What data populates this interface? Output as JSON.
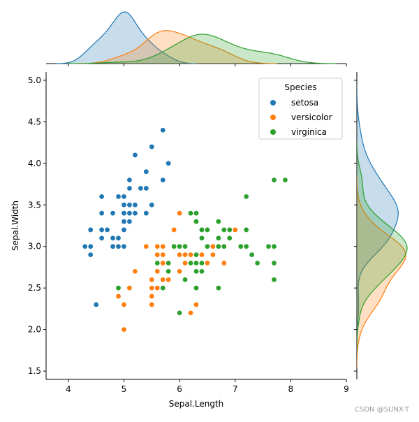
{
  "chart_data": {
    "type": "scatter",
    "xlabel": "Sepal.Length",
    "ylabel": "Sepal.Width",
    "xlim": [
      3.6,
      9.0
    ],
    "ylim": [
      1.4,
      5.1
    ],
    "xticks": [
      4,
      5,
      6,
      7,
      8,
      9
    ],
    "yticks": [
      1.5,
      2.0,
      2.5,
      3.0,
      3.5,
      4.0,
      4.5,
      5.0
    ],
    "legend": {
      "title": "Species",
      "location": "top-right"
    },
    "marginals": {
      "top": "kde of Sepal.Length by Species",
      "right": "kde of Sepal.Width by Species"
    },
    "series": [
      {
        "name": "setosa",
        "color": "#1f77b4",
        "points": [
          [
            5.1,
            3.5
          ],
          [
            4.9,
            3.0
          ],
          [
            4.7,
            3.2
          ],
          [
            4.6,
            3.1
          ],
          [
            5.0,
            3.6
          ],
          [
            5.4,
            3.9
          ],
          [
            4.6,
            3.4
          ],
          [
            5.0,
            3.4
          ],
          [
            4.4,
            2.9
          ],
          [
            4.9,
            3.1
          ],
          [
            5.4,
            3.7
          ],
          [
            4.8,
            3.4
          ],
          [
            4.8,
            3.0
          ],
          [
            4.3,
            3.0
          ],
          [
            5.8,
            4.0
          ],
          [
            5.7,
            4.4
          ],
          [
            5.4,
            3.9
          ],
          [
            5.1,
            3.5
          ],
          [
            5.7,
            3.8
          ],
          [
            5.1,
            3.8
          ],
          [
            5.4,
            3.4
          ],
          [
            5.1,
            3.7
          ],
          [
            4.6,
            3.6
          ],
          [
            5.1,
            3.3
          ],
          [
            4.8,
            3.4
          ],
          [
            5.0,
            3.0
          ],
          [
            5.0,
            3.4
          ],
          [
            5.2,
            3.5
          ],
          [
            5.2,
            3.4
          ],
          [
            4.7,
            3.2
          ],
          [
            4.8,
            3.1
          ],
          [
            5.4,
            3.4
          ],
          [
            5.2,
            4.1
          ],
          [
            5.5,
            4.2
          ],
          [
            4.9,
            3.1
          ],
          [
            5.0,
            3.2
          ],
          [
            5.5,
            3.5
          ],
          [
            4.9,
            3.6
          ],
          [
            4.4,
            3.0
          ],
          [
            5.1,
            3.4
          ],
          [
            5.0,
            3.5
          ],
          [
            4.5,
            2.3
          ],
          [
            4.4,
            3.2
          ],
          [
            5.0,
            3.5
          ],
          [
            5.1,
            3.8
          ],
          [
            4.8,
            3.0
          ],
          [
            5.1,
            3.8
          ],
          [
            4.6,
            3.2
          ],
          [
            5.3,
            3.7
          ],
          [
            5.0,
            3.3
          ]
        ]
      },
      {
        "name": "versicolor",
        "color": "#ff7f0e",
        "points": [
          [
            7.0,
            3.2
          ],
          [
            6.4,
            3.2
          ],
          [
            6.9,
            3.1
          ],
          [
            5.5,
            2.3
          ],
          [
            6.5,
            2.8
          ],
          [
            5.7,
            2.8
          ],
          [
            6.3,
            3.3
          ],
          [
            4.9,
            2.4
          ],
          [
            6.6,
            2.9
          ],
          [
            5.2,
            2.7
          ],
          [
            5.0,
            2.0
          ],
          [
            5.9,
            3.0
          ],
          [
            6.0,
            2.2
          ],
          [
            6.1,
            2.9
          ],
          [
            5.6,
            2.9
          ],
          [
            6.7,
            3.1
          ],
          [
            5.6,
            3.0
          ],
          [
            5.8,
            2.7
          ],
          [
            6.2,
            2.2
          ],
          [
            5.6,
            2.5
          ],
          [
            5.9,
            3.2
          ],
          [
            6.1,
            2.8
          ],
          [
            6.3,
            2.5
          ],
          [
            6.1,
            2.8
          ],
          [
            6.4,
            2.9
          ],
          [
            6.6,
            3.0
          ],
          [
            6.8,
            2.8
          ],
          [
            6.7,
            3.0
          ],
          [
            6.0,
            2.9
          ],
          [
            5.7,
            2.6
          ],
          [
            5.5,
            2.4
          ],
          [
            5.5,
            2.4
          ],
          [
            5.8,
            2.7
          ],
          [
            6.0,
            2.7
          ],
          [
            5.4,
            3.0
          ],
          [
            6.0,
            3.4
          ],
          [
            6.7,
            3.1
          ],
          [
            6.3,
            2.3
          ],
          [
            5.6,
            3.0
          ],
          [
            5.5,
            2.5
          ],
          [
            5.5,
            2.6
          ],
          [
            6.1,
            3.0
          ],
          [
            5.8,
            2.6
          ],
          [
            5.0,
            2.3
          ],
          [
            5.6,
            2.7
          ],
          [
            5.7,
            3.0
          ],
          [
            5.7,
            2.9
          ],
          [
            6.2,
            2.9
          ],
          [
            5.1,
            2.5
          ],
          [
            5.7,
            2.8
          ]
        ]
      },
      {
        "name": "virginica",
        "color": "#2ca02c",
        "points": [
          [
            6.3,
            3.3
          ],
          [
            5.8,
            2.7
          ],
          [
            7.1,
            3.0
          ],
          [
            6.3,
            2.9
          ],
          [
            6.5,
            3.0
          ],
          [
            7.6,
            3.0
          ],
          [
            4.9,
            2.5
          ],
          [
            7.3,
            2.9
          ],
          [
            6.7,
            2.5
          ],
          [
            7.2,
            3.6
          ],
          [
            6.5,
            3.2
          ],
          [
            6.4,
            2.7
          ],
          [
            6.8,
            3.0
          ],
          [
            5.7,
            2.5
          ],
          [
            5.8,
            2.8
          ],
          [
            6.4,
            3.2
          ],
          [
            6.5,
            3.0
          ],
          [
            7.7,
            3.8
          ],
          [
            7.7,
            2.6
          ],
          [
            6.0,
            2.2
          ],
          [
            6.9,
            3.2
          ],
          [
            5.6,
            2.8
          ],
          [
            7.7,
            2.8
          ],
          [
            6.3,
            2.7
          ],
          [
            6.7,
            3.3
          ],
          [
            7.2,
            3.2
          ],
          [
            6.2,
            2.8
          ],
          [
            6.1,
            3.0
          ],
          [
            6.4,
            2.8
          ],
          [
            7.2,
            3.0
          ],
          [
            7.4,
            2.8
          ],
          [
            7.9,
            3.8
          ],
          [
            6.4,
            2.8
          ],
          [
            6.3,
            2.8
          ],
          [
            6.1,
            2.6
          ],
          [
            7.7,
            3.0
          ],
          [
            6.3,
            3.4
          ],
          [
            6.4,
            3.1
          ],
          [
            6.0,
            3.0
          ],
          [
            6.9,
            3.1
          ],
          [
            6.7,
            3.1
          ],
          [
            6.9,
            3.1
          ],
          [
            5.8,
            2.7
          ],
          [
            6.8,
            3.2
          ],
          [
            6.7,
            3.3
          ],
          [
            6.7,
            3.0
          ],
          [
            6.3,
            2.5
          ],
          [
            6.5,
            3.0
          ],
          [
            6.2,
            3.4
          ],
          [
            5.9,
            3.0
          ]
        ]
      }
    ]
  },
  "watermark": "CSDN @SUNX-T"
}
